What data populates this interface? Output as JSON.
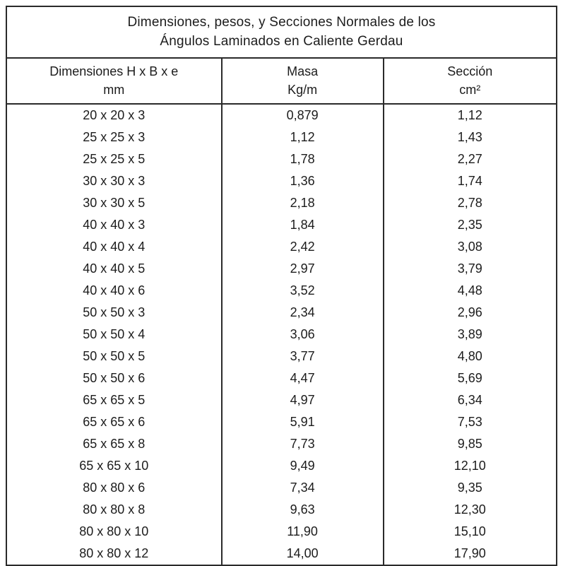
{
  "title": {
    "line1": "Dimensiones, pesos, y Secciones Normales de los",
    "line2": "Ángulos Laminados en Caliente Gerdau"
  },
  "columns": [
    {
      "label": "Dimensiones H x B x e",
      "unit": "mm"
    },
    {
      "label": "Masa",
      "unit": "Kg/m"
    },
    {
      "label": "Sección",
      "unit": "cm²"
    }
  ],
  "rows": [
    [
      "20 x 20 x 3",
      "0,879",
      "1,12"
    ],
    [
      "25 x 25 x 3",
      "1,12",
      "1,43"
    ],
    [
      "25 x 25 x 5",
      "1,78",
      "2,27"
    ],
    [
      "30 x 30 x 3",
      "1,36",
      "1,74"
    ],
    [
      "30 x 30 x 5",
      "2,18",
      "2,78"
    ],
    [
      "40 x 40 x 3",
      "1,84",
      "2,35"
    ],
    [
      "40 x 40 x 4",
      "2,42",
      "3,08"
    ],
    [
      "40 x 40 x 5",
      "2,97",
      "3,79"
    ],
    [
      "40 x 40 x 6",
      "3,52",
      "4,48"
    ],
    [
      "50 x 50 x 3",
      "2,34",
      "2,96"
    ],
    [
      "50 x 50 x 4",
      "3,06",
      "3,89"
    ],
    [
      "50 x 50 x 5",
      "3,77",
      "4,80"
    ],
    [
      "50 x 50 x 6",
      "4,47",
      "5,69"
    ],
    [
      "65 x 65 x 5",
      "4,97",
      "6,34"
    ],
    [
      "65 x 65 x 6",
      "5,91",
      "7,53"
    ],
    [
      "65 x 65 x 8",
      "7,73",
      "9,85"
    ],
    [
      "65 x 65 x 10",
      "9,49",
      "12,10"
    ],
    [
      "80 x 80 x 6",
      "7,34",
      "9,35"
    ],
    [
      "80 x 80 x 8",
      "9,63",
      "12,30"
    ],
    [
      "80 x 80 x 10",
      "11,90",
      "15,10"
    ],
    [
      "80 x 80 x 12",
      "14,00",
      "17,90"
    ]
  ],
  "colors": {
    "border": "#2a2a2a",
    "text": "#1c1c1c",
    "background": "#ffffff"
  }
}
